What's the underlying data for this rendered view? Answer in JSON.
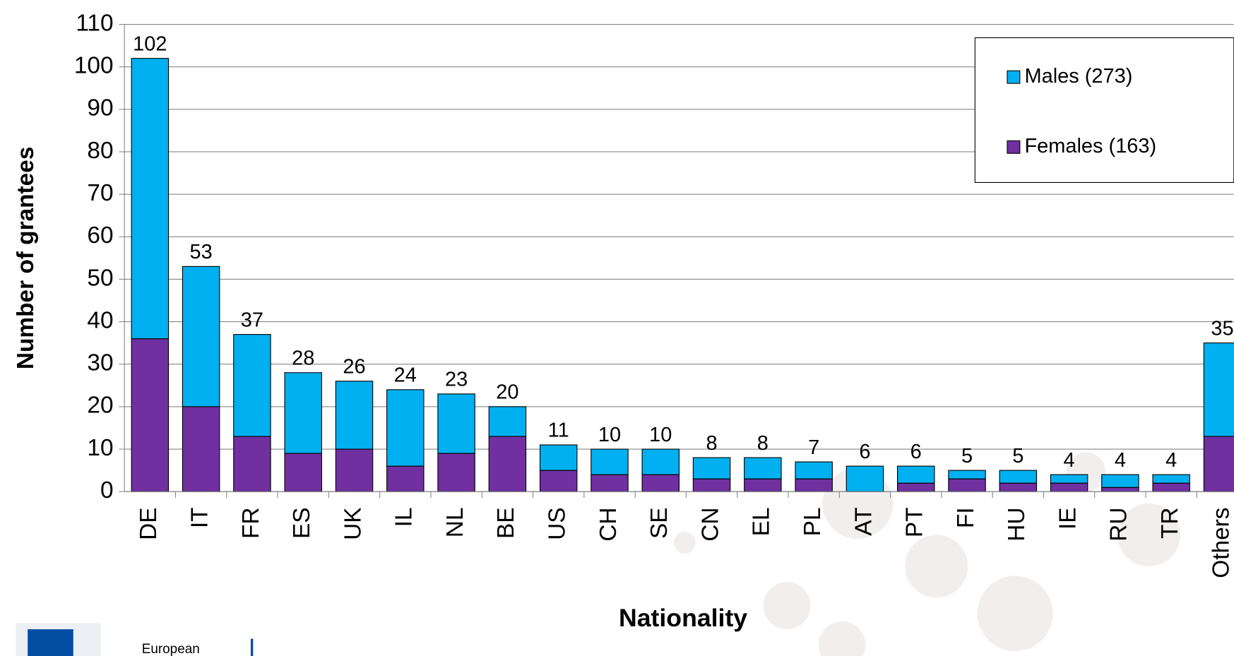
{
  "chart_data": {
    "type": "stacked_bar",
    "y_axis_title": "Number of grantees",
    "x_axis_title": "Nationality",
    "categories": [
      "DE",
      "IT",
      "FR",
      "ES",
      "UK",
      "IL",
      "NL",
      "BE",
      "US",
      "CH",
      "SE",
      "CN",
      "EL",
      "PL",
      "AT",
      "PT",
      "FI",
      "HU",
      "IE",
      "RU",
      "TR",
      "Others"
    ],
    "series": [
      {
        "name": "Males (273)",
        "color": "#00b0f0",
        "values": [
          66,
          33,
          24,
          19,
          16,
          18,
          14,
          7,
          6,
          6,
          6,
          5,
          5,
          4,
          6,
          4,
          2,
          3,
          2,
          3,
          2,
          22
        ]
      },
      {
        "name": "Females (163)",
        "color": "#7030a0",
        "values": [
          36,
          20,
          13,
          9,
          10,
          6,
          9,
          13,
          5,
          4,
          4,
          3,
          3,
          3,
          0,
          2,
          3,
          2,
          2,
          1,
          2,
          13
        ]
      }
    ],
    "total_labels": [
      102,
      53,
      37,
      28,
      26,
      24,
      23,
      20,
      11,
      10,
      10,
      8,
      8,
      7,
      6,
      6,
      5,
      5,
      4,
      4,
      4,
      35
    ],
    "ylim": [
      0,
      110
    ],
    "yticks": [
      0,
      10,
      20,
      30,
      40,
      50,
      60,
      70,
      80,
      90,
      100,
      110
    ],
    "grid": true,
    "legend_position": "upper right",
    "footer_text": "European"
  }
}
